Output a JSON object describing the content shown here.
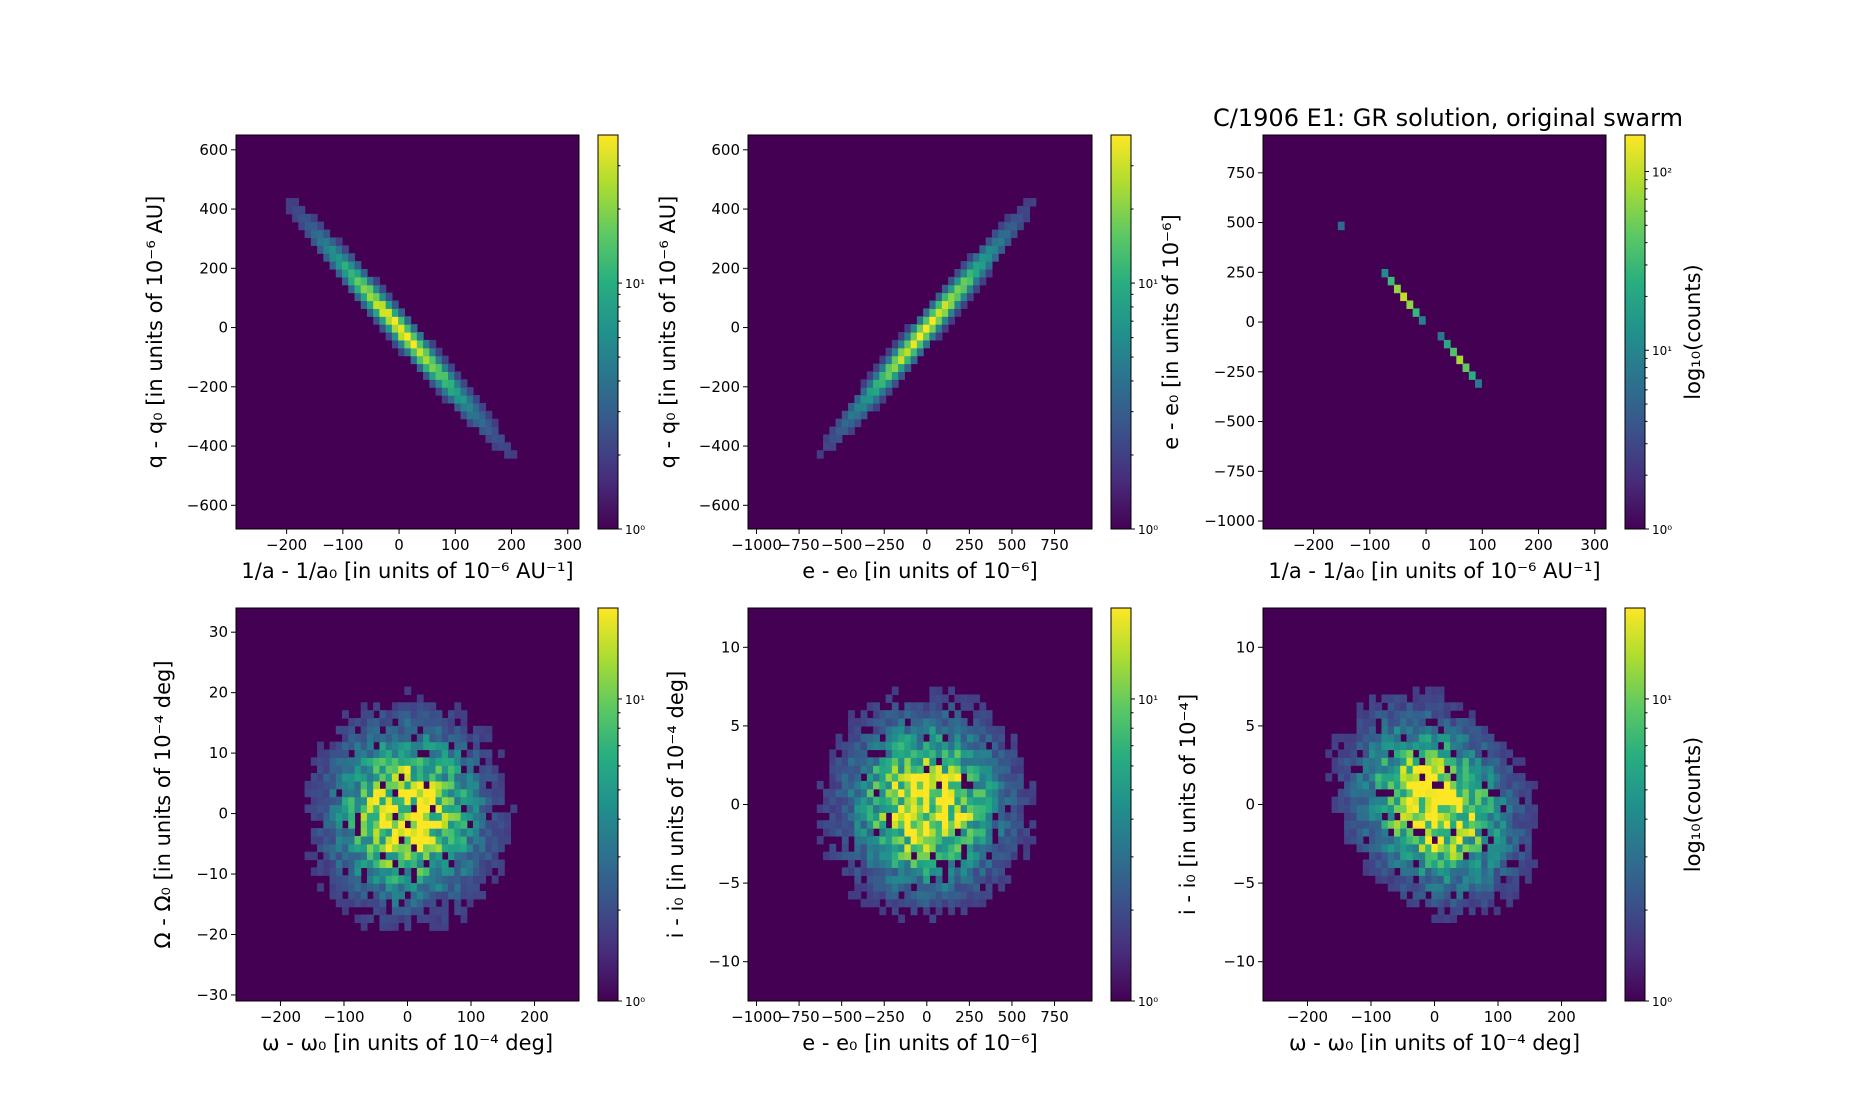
{
  "title": "C/1906 E1:  GR solution, original swarm",
  "colors": {
    "viridis_low": "#440154",
    "viridis_high": "#fde725"
  },
  "chart_data": [
    {
      "type": "heatmap",
      "panel": "top-left",
      "xlabel": "1/a - 1/a₀ [in units of 10⁻⁶ AU⁻¹]",
      "ylabel": "q - q₀ [in units of 10⁻⁶ AU]",
      "xlim": [
        -290,
        320
      ],
      "ylim": [
        -680,
        650
      ],
      "xticks": [
        -200,
        -100,
        0,
        100,
        200,
        300
      ],
      "yticks": [
        -600,
        -400,
        -200,
        0,
        200,
        400,
        600
      ],
      "correlation": -0.985,
      "spread": [
        95,
        205
      ],
      "colorbar": {
        "scale": "log",
        "range": [
          1,
          40
        ],
        "ticks": [
          "10⁰",
          "10¹"
        ],
        "label": ""
      }
    },
    {
      "type": "heatmap",
      "panel": "top-middle",
      "xlabel": "e - e₀ [in units of 10⁻⁶]",
      "ylabel": "q - q₀ [in units of 10⁻⁶ AU]",
      "xlim": [
        -1050,
        970
      ],
      "ylim": [
        -680,
        650
      ],
      "xticks": [
        -1000,
        -750,
        -500,
        -250,
        0,
        250,
        500,
        750
      ],
      "yticks": [
        -600,
        -400,
        -200,
        0,
        200,
        400,
        600
      ],
      "correlation": 0.985,
      "spread": [
        300,
        205
      ],
      "colorbar": {
        "scale": "log",
        "range": [
          1,
          40
        ],
        "ticks": [
          "10⁰",
          "10¹"
        ],
        "label": ""
      }
    },
    {
      "type": "heatmap",
      "panel": "top-right",
      "xlabel": "1/a - 1/a₀ [in units of 10⁻⁶ AU⁻¹]",
      "ylabel": "e - e₀ [in units of 10⁻⁶]",
      "xlim": [
        -290,
        320
      ],
      "ylim": [
        -1040,
        940
      ],
      "xticks": [
        -200,
        -100,
        0,
        100,
        200,
        300
      ],
      "yticks": [
        -1000,
        -750,
        -500,
        -250,
        0,
        250,
        500,
        750
      ],
      "correlation": -0.9995,
      "spread": [
        95,
        305
      ],
      "colorbar": {
        "scale": "log",
        "range": [
          1,
          160
        ],
        "ticks": [
          "10⁰",
          "10¹",
          "10²"
        ],
        "label": "log₁₀(counts)"
      }
    },
    {
      "type": "heatmap",
      "panel": "bottom-left",
      "xlabel": "ω - ω₀ [in units of 10⁻⁴ deg]",
      "ylabel": "Ω - Ω₀ [in units of 10⁻⁴ deg]",
      "xlim": [
        -270,
        270
      ],
      "ylim": [
        -31,
        34
      ],
      "xticks": [
        -200,
        -100,
        0,
        100,
        200
      ],
      "yticks": [
        -30,
        -20,
        -10,
        0,
        10,
        20,
        30
      ],
      "correlation": 0,
      "spread": [
        75,
        9
      ],
      "colorbar": {
        "scale": "log",
        "range": [
          1,
          20
        ],
        "ticks": [
          "10⁰",
          "10¹"
        ],
        "label": ""
      }
    },
    {
      "type": "heatmap",
      "panel": "bottom-middle",
      "xlabel": "e - e₀ [in units of 10⁻⁶]",
      "ylabel": "i - i₀ [in units of 10⁻⁴ deg]",
      "xlim": [
        -1050,
        970
      ],
      "ylim": [
        -12.5,
        12.5
      ],
      "xticks": [
        -1000,
        -750,
        -500,
        -250,
        0,
        250,
        500,
        750
      ],
      "yticks": [
        -10,
        -5,
        0,
        5,
        10
      ],
      "correlation": 0,
      "spread": [
        290,
        3.4
      ],
      "colorbar": {
        "scale": "log",
        "range": [
          1,
          20
        ],
        "ticks": [
          "10⁰",
          "10¹"
        ],
        "label": ""
      }
    },
    {
      "type": "heatmap",
      "panel": "bottom-right",
      "xlabel": "ω - ω₀ [in units of 10⁻⁴ deg]",
      "ylabel": "i - i₀ [in units of 10⁻⁴]",
      "xlim": [
        -270,
        270
      ],
      "ylim": [
        -12.5,
        12.5
      ],
      "xticks": [
        -200,
        -100,
        0,
        100,
        200
      ],
      "yticks": [
        -10,
        -5,
        0,
        5,
        10
      ],
      "correlation": -0.25,
      "spread": [
        75,
        3.4
      ],
      "colorbar": {
        "scale": "log",
        "range": [
          1,
          20
        ],
        "ticks": [
          "10⁰",
          "10¹"
        ],
        "label": "log₁₀(counts)"
      }
    }
  ]
}
